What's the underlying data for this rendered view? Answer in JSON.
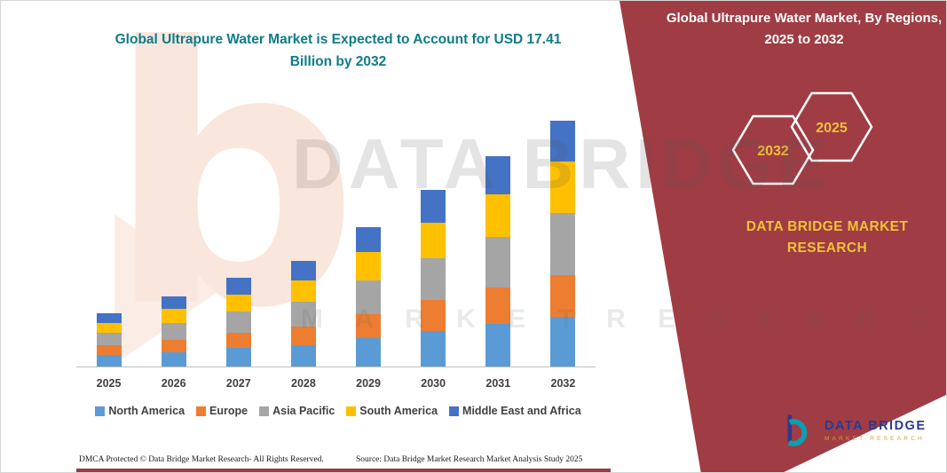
{
  "main": {
    "title": "Global Ultrapure Water Market is Expected to Account for USD 17.41 Billion by 2032"
  },
  "panel": {
    "header": "Global Ultrapure Water Market, By Regions, 2025 to 2032",
    "hex_left": "2032",
    "hex_right": "2025",
    "brand": "DATA BRIDGE MARKET RESEARCH",
    "background_color": "#a03c44",
    "accent_color": "#efc237"
  },
  "watermark": {
    "line1": "DATA BRIDGE",
    "line2": "M A R K E T   R E S E A R C H",
    "big_b": "b"
  },
  "footer": {
    "dmca": "DMCA Protected © Data Bridge Market Research-  All Rights Reserved.",
    "source": "Source: Data Bridge Market Research  Market Analysis Study 2025"
  },
  "logo": {
    "title": "DATA BRIDGE",
    "subtitle": "MARKET RESEARCH"
  },
  "chart_data": {
    "type": "bar",
    "stacked": true,
    "title": "Global Ultrapure Water Market is Expected to Account for USD 17.41 Billion by 2032",
    "unit": "USD Billion",
    "categories": [
      "2025",
      "2026",
      "2027",
      "2028",
      "2029",
      "2030",
      "2031",
      "2032"
    ],
    "series": [
      {
        "name": "North America",
        "color": "#5b9bd5",
        "values": [
          0.8,
          1.0,
          1.3,
          1.5,
          2.0,
          2.5,
          3.0,
          3.5
        ]
      },
      {
        "name": "Europe",
        "color": "#ed7d31",
        "values": [
          0.7,
          0.9,
          1.1,
          1.3,
          1.7,
          2.2,
          2.6,
          3.0
        ]
      },
      {
        "name": "Asia Pacific",
        "color": "#a5a5a5",
        "values": [
          0.9,
          1.2,
          1.5,
          1.8,
          2.4,
          3.0,
          3.6,
          4.4
        ]
      },
      {
        "name": "South America",
        "color": "#ffc000",
        "values": [
          0.7,
          1.0,
          1.2,
          1.5,
          2.0,
          2.5,
          3.0,
          3.6
        ]
      },
      {
        "name": "Middle East and Africa",
        "color": "#4472c4",
        "values": [
          0.7,
          0.9,
          1.2,
          1.4,
          1.8,
          2.3,
          2.7,
          2.91
        ]
      }
    ],
    "totals": [
      3.8,
      5.0,
      6.3,
      7.5,
      9.9,
      12.5,
      14.9,
      17.41
    ],
    "ylim": [
      0,
      18
    ],
    "axis": {
      "x_visible": true,
      "y_visible": false,
      "grid": false
    },
    "legend_position": "bottom",
    "title_color": "#0e7c8a"
  }
}
